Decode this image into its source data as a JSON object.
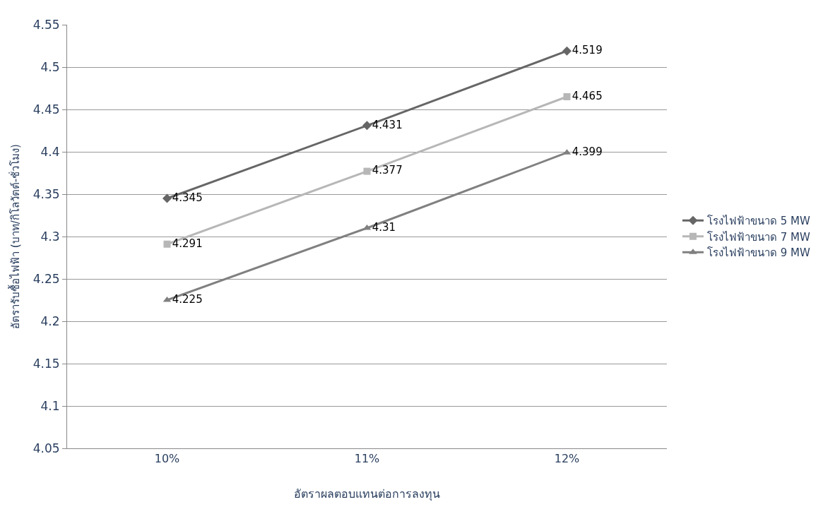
{
  "chart_data": {
    "type": "line",
    "xlabel": "อัตราผลตอบแทนต่อการลงทุน",
    "ylabel": "อัตรารับซื้อไฟฟ้า (บาท/กิโลวัตต์-ชั่วโมง)",
    "categories": [
      "10%",
      "11%",
      "12%"
    ],
    "series": [
      {
        "name": "โรงไฟฟ้าขนาด 5 MW",
        "color": "#666666",
        "marker": "diamond",
        "values": [
          4.345,
          4.431,
          4.519
        ]
      },
      {
        "name": "โรงไฟฟ้าขนาด 7 MW",
        "color": "#b7b7b7",
        "marker": "square",
        "values": [
          4.291,
          4.377,
          4.465
        ]
      },
      {
        "name": "โรงไฟฟ้าขนาด 9 MW",
        "color": "#808080",
        "marker": "triangle",
        "values": [
          4.225,
          4.31,
          4.399
        ]
      }
    ],
    "ylim": [
      4.05,
      4.55
    ],
    "yticks": [
      4.05,
      4.1,
      4.15,
      4.2,
      4.25,
      4.3,
      4.35,
      4.4,
      4.45,
      4.5,
      4.55
    ],
    "grid": "y",
    "legend": "right",
    "data_labels": true,
    "line_style": "solid"
  }
}
